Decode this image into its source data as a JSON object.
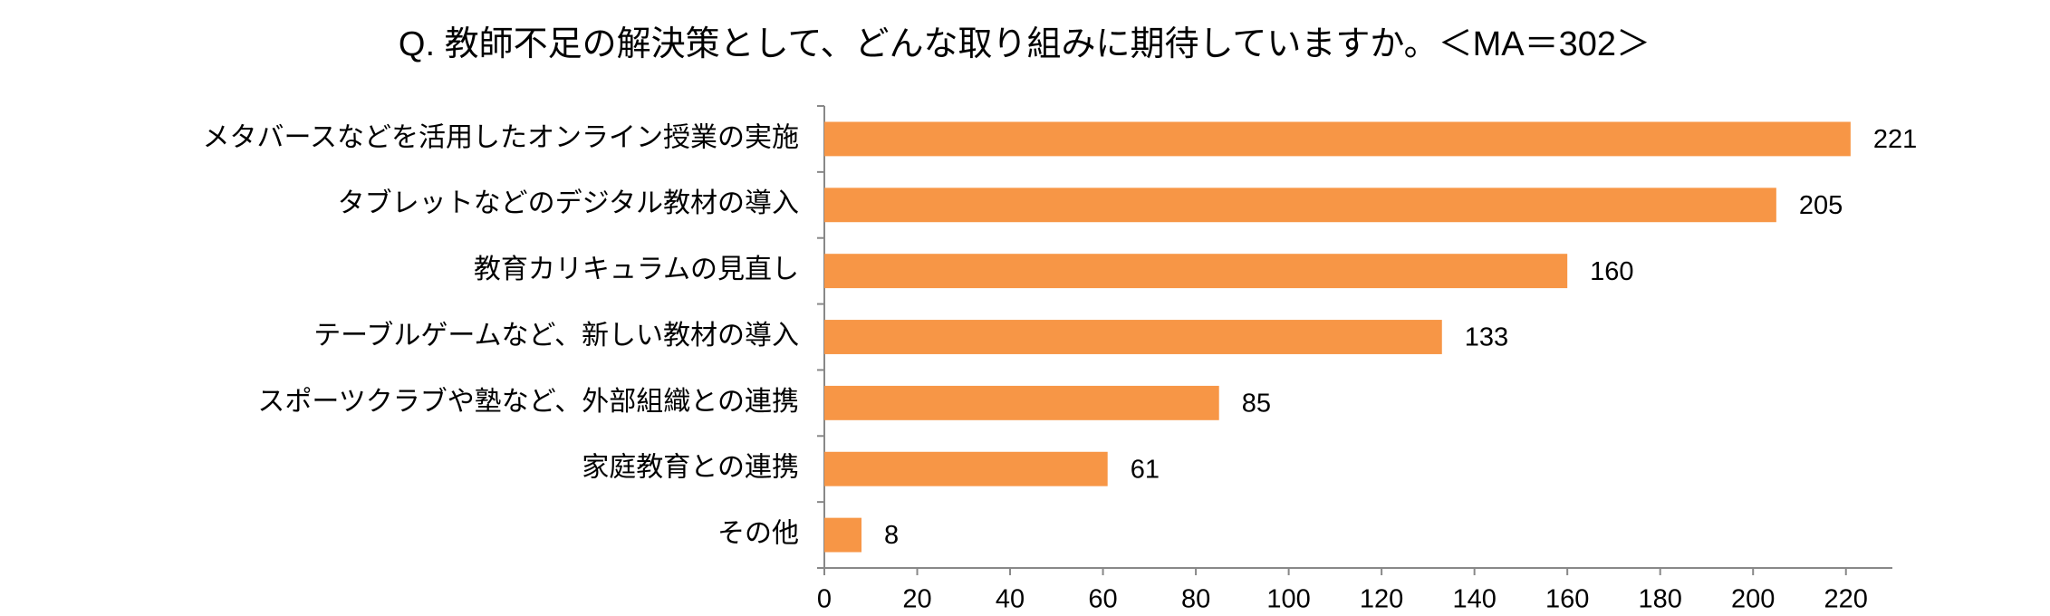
{
  "chart_data": {
    "type": "bar",
    "orientation": "horizontal",
    "title": "Q. 教師不足の解決策として、どんな取り組みに期待していますか。＜MA＝302＞",
    "categories": [
      "メタバースなどを活用したオンライン授業の実施",
      "タブレットなどのデジタル教材の導入",
      "教育カリキュラムの見直し",
      "テーブルゲームなど、新しい教材の導入",
      "スポーツクラブや塾など、外部組織との連携",
      "家庭教育との連携",
      "その他"
    ],
    "values": [
      221,
      205,
      160,
      133,
      85,
      61,
      8
    ],
    "color": "#f79646",
    "xlim": [
      0,
      230
    ],
    "xticks": [
      0,
      20,
      40,
      60,
      80,
      100,
      120,
      140,
      160,
      180,
      200,
      220
    ],
    "grid": false
  }
}
